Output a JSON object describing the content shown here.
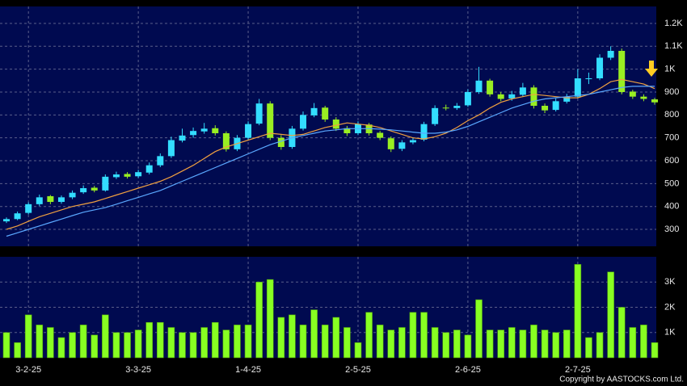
{
  "chart_data": [
    {
      "type": "candlestick",
      "open": [
        335,
        345,
        372,
        410,
        445,
        420,
        440,
        462,
        482,
        470,
        528,
        542,
        532,
        548,
        580,
        620,
        688,
        712,
        728,
        742,
        720,
        650,
        700,
        762,
        850,
        700,
        660,
        740,
        798,
        832,
        780,
        742,
        720,
        758,
        722,
        698,
        652,
        680,
        692,
        760,
        832,
        830,
        842,
        900,
        950,
        890,
        872,
        888,
        920,
        840,
        822,
        858,
        880,
        958,
        960,
        1050,
        1080,
        902,
        880,
        868
      ],
      "high": [
        352,
        378,
        418,
        452,
        450,
        448,
        470,
        492,
        490,
        540,
        552,
        550,
        560,
        592,
        632,
        705,
        740,
        745,
        765,
        755,
        728,
        712,
        772,
        870,
        860,
        712,
        752,
        815,
        852,
        840,
        790,
        752,
        772,
        765,
        730,
        706,
        690,
        702,
        770,
        842,
        845,
        852,
        912,
        1010,
        958,
        900,
        905,
        940,
        930,
        850,
        872,
        892,
        1000,
        985,
        1065,
        1100,
        1090,
        910,
        890,
        875
      ],
      "low": [
        328,
        340,
        365,
        402,
        410,
        412,
        432,
        455,
        462,
        465,
        520,
        522,
        525,
        540,
        572,
        612,
        680,
        700,
        718,
        710,
        640,
        642,
        692,
        755,
        690,
        648,
        652,
        732,
        790,
        770,
        730,
        708,
        712,
        710,
        690,
        638,
        642,
        672,
        685,
        752,
        820,
        822,
        835,
        892,
        880,
        860,
        862,
        880,
        828,
        808,
        815,
        850,
        872,
        935,
        952,
        1040,
        890,
        870,
        860,
        845
      ],
      "close": [
        345,
        370,
        410,
        440,
        420,
        440,
        460,
        480,
        470,
        530,
        540,
        530,
        550,
        580,
        620,
        690,
        710,
        730,
        740,
        720,
        650,
        700,
        760,
        850,
        700,
        660,
        740,
        800,
        830,
        780,
        740,
        720,
        760,
        720,
        700,
        650,
        680,
        690,
        760,
        830,
        830,
        840,
        900,
        950,
        890,
        870,
        890,
        920,
        840,
        820,
        860,
        880,
        960,
        960,
        1050,
        1080,
        900,
        880,
        870,
        855
      ],
      "up_color": "#33ddff",
      "down_color": "#99ee22",
      "series": [
        {
          "color": "#f0a040",
          "values": [
            300,
            315,
            335,
            355,
            370,
            385,
            400,
            410,
            420,
            435,
            450,
            465,
            480,
            495,
            510,
            530,
            555,
            580,
            610,
            640,
            660,
            675,
            690,
            705,
            720,
            715,
            710,
            715,
            730,
            745,
            755,
            765,
            760,
            755,
            745,
            730,
            715,
            700,
            695,
            705,
            720,
            745,
            775,
            800,
            830,
            855,
            870,
            880,
            890,
            885,
            880,
            875,
            875,
            890,
            915,
            945,
            955,
            945,
            935,
            915
          ]
        },
        {
          "color": "#5aa8ff",
          "values": [
            270,
            285,
            300,
            315,
            330,
            345,
            360,
            375,
            385,
            395,
            410,
            425,
            440,
            455,
            470,
            490,
            510,
            530,
            550,
            570,
            590,
            610,
            630,
            650,
            670,
            685,
            700,
            710,
            720,
            730,
            735,
            740,
            740,
            740,
            738,
            735,
            730,
            725,
            720,
            720,
            725,
            735,
            750,
            770,
            790,
            810,
            830,
            845,
            860,
            870,
            875,
            880,
            885,
            890,
            900,
            910,
            920,
            925,
            925,
            925
          ]
        }
      ],
      "ylim": [
        226,
        1274
      ],
      "yticks": [
        300,
        400,
        500,
        600,
        700,
        800,
        900,
        {
          "value": 1000,
          "label": "1K"
        },
        {
          "value": 1100,
          "label": "1.1K"
        },
        {
          "value": 1200,
          "label": "1.2K"
        }
      ],
      "grid": true
    },
    {
      "type": "bar",
      "categories": [
        null,
        null,
        "3-2-25",
        null,
        null,
        null,
        null,
        null,
        null,
        null,
        null,
        null,
        "3-3-25",
        null,
        null,
        null,
        null,
        null,
        null,
        null,
        null,
        null,
        "1-4-25",
        null,
        null,
        null,
        null,
        null,
        null,
        null,
        null,
        null,
        "2-5-25",
        null,
        null,
        null,
        null,
        null,
        null,
        null,
        null,
        null,
        "2-6-25",
        null,
        null,
        null,
        null,
        null,
        null,
        null,
        null,
        null,
        "2-7-25",
        null,
        null,
        null,
        null,
        null,
        null,
        null
      ],
      "values": [
        1000,
        600,
        1700,
        1300,
        1200,
        800,
        1000,
        1300,
        900,
        1700,
        1000,
        1000,
        1100,
        1400,
        1400,
        1200,
        1000,
        1000,
        1200,
        1400,
        1100,
        1300,
        1300,
        3000,
        3100,
        1600,
        1700,
        1300,
        1900,
        1300,
        1600,
        1200,
        600,
        1800,
        1300,
        1100,
        1200,
        1800,
        1800,
        1200,
        1000,
        1100,
        900,
        2300,
        1100,
        1100,
        1200,
        1100,
        1300,
        1100,
        1000,
        1100,
        3700,
        800,
        1000,
        3400,
        2000,
        1200,
        1300,
        600
      ],
      "color": "#88ff22",
      "ylim": [
        0,
        4000
      ],
      "yticks": [
        {
          "value": 1000,
          "label": "1K"
        },
        {
          "value": 2000,
          "label": "2K"
        },
        {
          "value": 3000,
          "label": "3K"
        }
      ],
      "grid": true,
      "annotations": [
        "Copyright by AASTOCKS.com Ltd."
      ]
    }
  ]
}
